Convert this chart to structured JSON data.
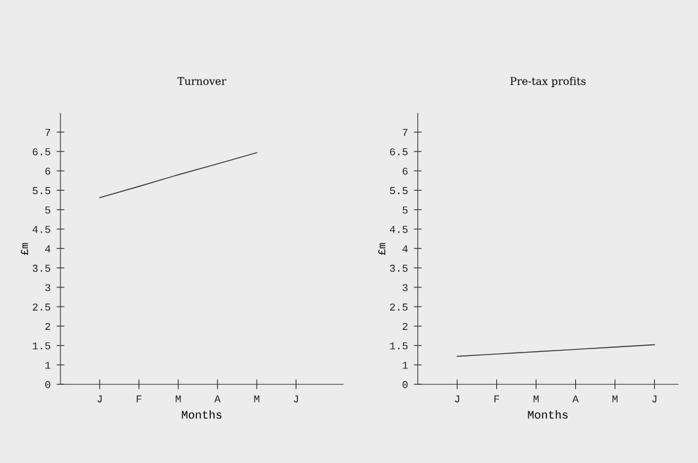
{
  "chart_data": [
    {
      "type": "line",
      "title": "Turnover",
      "xlabel": "Months",
      "ylabel": "£m",
      "categories": [
        "J",
        "F",
        "M",
        "A",
        "M",
        "J"
      ],
      "series": [
        {
          "color": "#333333",
          "values": [
            5.31,
            5.6,
            5.9,
            6.18,
            6.47,
            null
          ]
        }
      ],
      "ylim": [
        0.5,
        7.48
      ],
      "yticks": [
        {
          "value": 0.5,
          "label": "0"
        },
        1,
        1.5,
        2,
        2.5,
        3,
        3.5,
        4,
        4.5,
        5,
        5.5,
        6,
        6.5,
        7
      ],
      "grid": false,
      "legend": false,
      "marker": "none",
      "line_style": "solid"
    },
    {
      "type": "line",
      "title": "Pre-tax profits",
      "xlabel": "Months",
      "ylabel": "£m",
      "categories": [
        "J",
        "F",
        "M",
        "A",
        "M",
        "J"
      ],
      "series": [
        {
          "color": "#333333",
          "values": [
            1.22,
            1.28,
            1.34,
            1.4,
            1.46,
            1.52
          ]
        }
      ],
      "ylim": [
        0.5,
        7.48
      ],
      "yticks": [
        {
          "value": 0.5,
          "label": "0"
        },
        1,
        1.5,
        2,
        2.5,
        3,
        3.5,
        4,
        4.5,
        5,
        5.5,
        6,
        6.5,
        7
      ],
      "grid": false,
      "legend": false,
      "marker": "none",
      "line_style": "solid"
    }
  ]
}
